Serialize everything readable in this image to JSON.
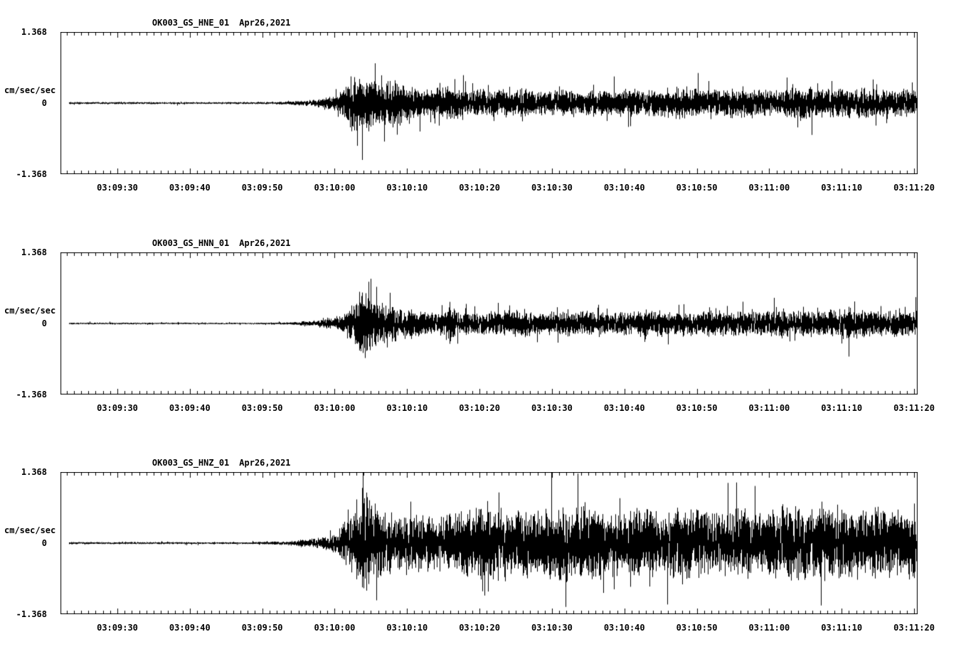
{
  "page": {
    "background": "#ffffff",
    "foreground": "#000000"
  },
  "chart_data": [
    {
      "type": "line",
      "subtype": "seismogram-waveform",
      "title": "OK003_GS_HNE_01",
      "date_label": "Apr26,2021",
      "ylabel": "cm/sec/sec",
      "ylim": [
        -1.368,
        1.368
      ],
      "y_tick_labels": [
        "1.368",
        "0",
        "-1.368"
      ],
      "x_tick_labels": [
        "03:09:30",
        "03:09:40",
        "03:09:50",
        "03:10:00",
        "03:10:10",
        "03:10:20",
        "03:10:30",
        "03:10:40",
        "03:10:50",
        "03:11:00",
        "03:11:10",
        "03:11:20"
      ],
      "x_minor_tick_interval_s": 1,
      "x_major_tick_interval_s": 10,
      "grid": false,
      "legend": false,
      "trace_color": "#000000",
      "seed": 1,
      "envelope_frac_amp": [
        [
          0.0,
          0.018
        ],
        [
          0.22,
          0.015
        ],
        [
          0.26,
          0.025
        ],
        [
          0.295,
          0.05
        ],
        [
          0.315,
          0.1
        ],
        [
          0.33,
          0.22
        ],
        [
          0.342,
          0.5
        ],
        [
          0.35,
          0.4
        ],
        [
          0.36,
          0.48
        ],
        [
          0.372,
          0.32
        ],
        [
          0.39,
          0.35
        ],
        [
          0.41,
          0.26
        ],
        [
          0.43,
          0.22
        ],
        [
          0.452,
          0.3
        ],
        [
          0.47,
          0.22
        ],
        [
          0.5,
          0.2
        ],
        [
          0.53,
          0.24
        ],
        [
          0.56,
          0.18
        ],
        [
          0.6,
          0.22
        ],
        [
          0.63,
          0.19
        ],
        [
          0.66,
          0.22
        ],
        [
          0.7,
          0.2
        ],
        [
          0.72,
          0.26
        ],
        [
          0.75,
          0.2
        ],
        [
          0.78,
          0.22
        ],
        [
          0.81,
          0.24
        ],
        [
          0.84,
          0.2
        ],
        [
          0.87,
          0.26
        ],
        [
          0.9,
          0.21
        ],
        [
          0.93,
          0.24
        ],
        [
          0.96,
          0.2
        ],
        [
          1.0,
          0.22
        ]
      ]
    },
    {
      "type": "line",
      "subtype": "seismogram-waveform",
      "title": "OK003_GS_HNN_01",
      "date_label": "Apr26,2021",
      "ylabel": "cm/sec/sec",
      "ylim": [
        -1.368,
        1.368
      ],
      "y_tick_labels": [
        "1.368",
        "0",
        "-1.368"
      ],
      "x_tick_labels": [
        "03:09:30",
        "03:09:40",
        "03:09:50",
        "03:10:00",
        "03:10:10",
        "03:10:20",
        "03:10:30",
        "03:10:40",
        "03:10:50",
        "03:11:00",
        "03:11:10",
        "03:11:20"
      ],
      "x_minor_tick_interval_s": 1,
      "x_major_tick_interval_s": 10,
      "grid": false,
      "legend": false,
      "trace_color": "#000000",
      "seed": 2,
      "envelope_frac_amp": [
        [
          0.0,
          0.015
        ],
        [
          0.22,
          0.012
        ],
        [
          0.27,
          0.02
        ],
        [
          0.3,
          0.05
        ],
        [
          0.325,
          0.12
        ],
        [
          0.34,
          0.28
        ],
        [
          0.352,
          0.55
        ],
        [
          0.365,
          0.42
        ],
        [
          0.378,
          0.3
        ],
        [
          0.4,
          0.26
        ],
        [
          0.42,
          0.2
        ],
        [
          0.448,
          0.18
        ],
        [
          0.455,
          0.42
        ],
        [
          0.462,
          0.18
        ],
        [
          0.5,
          0.18
        ],
        [
          0.53,
          0.22
        ],
        [
          0.56,
          0.17
        ],
        [
          0.6,
          0.2
        ],
        [
          0.64,
          0.18
        ],
        [
          0.68,
          0.21
        ],
        [
          0.72,
          0.18
        ],
        [
          0.76,
          0.2
        ],
        [
          0.8,
          0.18
        ],
        [
          0.84,
          0.22
        ],
        [
          0.88,
          0.2
        ],
        [
          0.92,
          0.24
        ],
        [
          0.96,
          0.2
        ],
        [
          1.0,
          0.22
        ]
      ]
    },
    {
      "type": "line",
      "subtype": "seismogram-waveform",
      "title": "OK003_GS_HNZ_01",
      "date_label": "Apr26,2021",
      "ylabel": "cm/sec/sec",
      "ylim": [
        -1.368,
        1.368
      ],
      "y_tick_labels": [
        "1.368",
        "0",
        "-1.368"
      ],
      "x_tick_labels": [
        "03:09:30",
        "03:09:40",
        "03:09:50",
        "03:10:00",
        "03:10:10",
        "03:10:20",
        "03:10:30",
        "03:10:40",
        "03:10:50",
        "03:11:00",
        "03:11:10",
        "03:11:20"
      ],
      "x_minor_tick_interval_s": 1,
      "x_major_tick_interval_s": 10,
      "grid": false,
      "legend": false,
      "trace_color": "#000000",
      "seed": 3,
      "envelope_frac_amp": [
        [
          0.0,
          0.018
        ],
        [
          0.22,
          0.015
        ],
        [
          0.26,
          0.03
        ],
        [
          0.295,
          0.07
        ],
        [
          0.32,
          0.15
        ],
        [
          0.34,
          0.45
        ],
        [
          0.352,
          0.95
        ],
        [
          0.362,
          0.6
        ],
        [
          0.375,
          0.55
        ],
        [
          0.39,
          0.45
        ],
        [
          0.41,
          0.5
        ],
        [
          0.43,
          0.4
        ],
        [
          0.46,
          0.45
        ],
        [
          0.49,
          0.55
        ],
        [
          0.52,
          0.6
        ],
        [
          0.55,
          0.5
        ],
        [
          0.58,
          0.55
        ],
        [
          0.61,
          0.6
        ],
        [
          0.64,
          0.45
        ],
        [
          0.67,
          0.55
        ],
        [
          0.7,
          0.5
        ],
        [
          0.73,
          0.6
        ],
        [
          0.76,
          0.45
        ],
        [
          0.79,
          0.55
        ],
        [
          0.82,
          0.5
        ],
        [
          0.85,
          0.6
        ],
        [
          0.88,
          0.55
        ],
        [
          0.91,
          0.6
        ],
        [
          0.94,
          0.5
        ],
        [
          0.97,
          0.55
        ],
        [
          1.0,
          0.5
        ]
      ]
    }
  ]
}
